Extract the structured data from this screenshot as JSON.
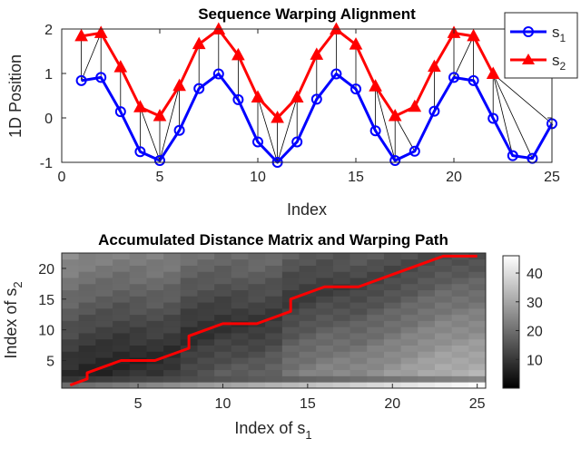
{
  "chart_data": [
    {
      "type": "line",
      "title": "Sequence Warping Alignment",
      "xlabel": "Index",
      "ylabel": "1D Position",
      "xlim": [
        0,
        25
      ],
      "ylim": [
        -1,
        2
      ],
      "xticks": [
        0,
        5,
        10,
        15,
        20,
        25
      ],
      "yticks": [
        -1,
        0,
        1,
        2
      ],
      "legend": {
        "placement": "top-right",
        "entries": [
          {
            "name": "s",
            "sub": "1",
            "color": "#0000ff",
            "marker": "circle"
          },
          {
            "name": "s",
            "sub": "2",
            "color": "#ff0000",
            "marker": "triangle"
          }
        ]
      },
      "series": [
        {
          "name": "s1",
          "color": "#0000ff",
          "x": [
            1,
            2,
            3,
            4,
            5,
            6,
            7,
            8,
            9,
            10,
            11,
            12,
            13,
            14,
            15,
            16,
            17,
            18,
            19,
            20,
            21,
            22,
            23,
            24,
            25
          ],
          "y": [
            0.84,
            0.91,
            0.14,
            -0.76,
            -0.96,
            -0.28,
            0.66,
            0.99,
            0.41,
            -0.54,
            -1.0,
            -0.54,
            0.42,
            0.99,
            0.65,
            -0.29,
            -0.96,
            -0.75,
            0.15,
            0.91,
            0.84,
            -0.01,
            -0.85,
            -0.91,
            -0.13
          ]
        },
        {
          "name": "s2",
          "color": "#ff0000",
          "x": [
            1,
            2,
            3,
            4,
            5,
            6,
            7,
            8,
            9,
            10,
            11,
            12,
            13,
            14,
            15,
            16,
            17,
            18,
            19,
            20,
            21,
            22
          ],
          "y": [
            1.84,
            1.91,
            1.14,
            0.24,
            0.04,
            0.72,
            1.66,
            1.99,
            1.41,
            0.46,
            0.0,
            0.46,
            1.42,
            1.99,
            1.65,
            0.71,
            0.04,
            0.25,
            1.15,
            1.91,
            1.84,
            0.99
          ]
        }
      ],
      "alignment_pairs": [
        [
          1,
          1
        ],
        [
          1,
          2
        ],
        [
          2,
          2
        ],
        [
          3,
          3
        ],
        [
          4,
          4
        ],
        [
          5,
          4
        ],
        [
          5,
          5
        ],
        [
          5,
          6
        ],
        [
          6,
          6
        ],
        [
          7,
          7
        ],
        [
          8,
          8
        ],
        [
          9,
          9
        ],
        [
          10,
          10
        ],
        [
          11,
          10
        ],
        [
          11,
          11
        ],
        [
          11,
          12
        ],
        [
          12,
          12
        ],
        [
          13,
          13
        ],
        [
          14,
          14
        ],
        [
          15,
          15
        ],
        [
          16,
          16
        ],
        [
          17,
          16
        ],
        [
          17,
          17
        ],
        [
          18,
          17
        ],
        [
          19,
          19
        ],
        [
          20,
          20
        ],
        [
          20,
          21
        ],
        [
          21,
          21
        ],
        [
          22,
          22
        ],
        [
          23,
          22
        ],
        [
          24,
          22
        ],
        [
          25,
          22
        ]
      ]
    },
    {
      "type": "heatmap",
      "title": "Accumulated Distance Matrix and Warping Path",
      "xlabel": "Index of s",
      "xlabel_sub": "1",
      "ylabel": "Index of s",
      "ylabel_sub": "2",
      "xlim": [
        0.5,
        25.5
      ],
      "ylim": [
        0.5,
        22.5
      ],
      "xticks": [
        5,
        10,
        15,
        20,
        25
      ],
      "yticks": [
        5,
        10,
        15,
        20
      ],
      "colormap": "gray",
      "clim": [
        0,
        46
      ],
      "colorbar_ticks": [
        10,
        20,
        30,
        40
      ],
      "path_color": "#ff0000",
      "warping_path": [
        [
          1,
          1
        ],
        [
          2,
          2
        ],
        [
          2,
          3
        ],
        [
          3,
          4
        ],
        [
          4,
          5
        ],
        [
          5,
          5
        ],
        [
          6,
          5
        ],
        [
          7,
          6
        ],
        [
          8,
          7
        ],
        [
          8,
          8
        ],
        [
          8,
          9
        ],
        [
          9,
          10
        ],
        [
          10,
          11
        ],
        [
          11,
          11
        ],
        [
          12,
          11
        ],
        [
          13,
          12
        ],
        [
          14,
          13
        ],
        [
          14,
          14
        ],
        [
          14,
          15
        ],
        [
          15,
          16
        ],
        [
          16,
          17
        ],
        [
          17,
          17
        ],
        [
          18,
          17
        ],
        [
          19,
          18
        ],
        [
          20,
          19
        ],
        [
          21,
          20
        ],
        [
          22,
          21
        ],
        [
          23,
          22
        ],
        [
          24,
          22
        ],
        [
          25,
          22
        ]
      ]
    }
  ]
}
